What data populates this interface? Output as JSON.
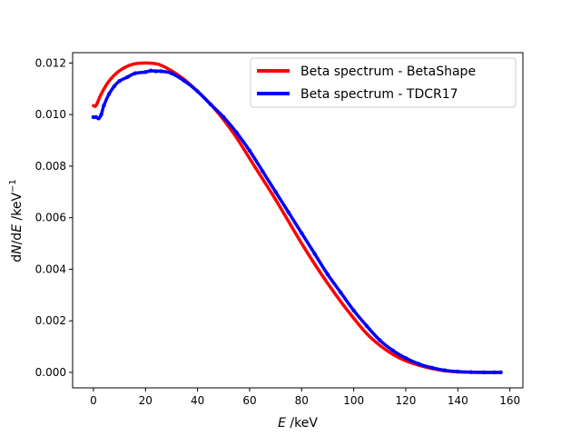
{
  "chart_data": {
    "type": "line",
    "title": "",
    "xlabel": {
      "var": "E",
      "unit": " /keV"
    },
    "ylabel": {
      "pre": "d",
      "var1": "N",
      "mid": "/d",
      "var2": "E",
      "unit": " /keV",
      "sup": "−1"
    },
    "xlim": [
      -8,
      165
    ],
    "ylim": [
      -0.0006,
      0.0124
    ],
    "xticks": [
      0,
      20,
      40,
      60,
      80,
      100,
      120,
      140,
      160
    ],
    "xtick_labels": [
      "0",
      "20",
      "40",
      "60",
      "80",
      "100",
      "120",
      "140",
      "160"
    ],
    "yticks": [
      0.0,
      0.002,
      0.004,
      0.006,
      0.008,
      0.01,
      0.012
    ],
    "ytick_labels": [
      "0.000",
      "0.002",
      "0.004",
      "0.006",
      "0.008",
      "0.010",
      "0.012"
    ],
    "grid": false,
    "legend_position": "top-right",
    "series": [
      {
        "name": "Beta spectrum - BetaShape",
        "color": "#ff0000",
        "marker": "none",
        "x": [
          0,
          1,
          3,
          6,
          10,
          15,
          20,
          25,
          30,
          35,
          40,
          45,
          50,
          55,
          60,
          65,
          70,
          75,
          80,
          85,
          90,
          95,
          100,
          105,
          110,
          115,
          120,
          125,
          130,
          135,
          140,
          145,
          150,
          154,
          156.5
        ],
        "y": [
          0.01035,
          0.01035,
          0.0108,
          0.0113,
          0.0117,
          0.01195,
          0.012,
          0.01195,
          0.0117,
          0.01135,
          0.0109,
          0.0104,
          0.0098,
          0.0091,
          0.0083,
          0.0075,
          0.0067,
          0.00585,
          0.005,
          0.0042,
          0.00345,
          0.00275,
          0.0021,
          0.0015,
          0.00105,
          0.0007,
          0.00045,
          0.00028,
          0.00015,
          6e-05,
          2e-05,
          5e-06,
          0.0,
          0.0,
          0.0
        ]
      },
      {
        "name": "Beta spectrum - TDCR17",
        "color": "#0000ff",
        "marker": "dot",
        "x": [
          0,
          1,
          2,
          3,
          4,
          6,
          8,
          10,
          13,
          16,
          20,
          22,
          24,
          26,
          30,
          35,
          40,
          45,
          50,
          55,
          60,
          65,
          70,
          75,
          80,
          85,
          90,
          95,
          100,
          105,
          110,
          115,
          120,
          125,
          130,
          135,
          140,
          145,
          150,
          154,
          156.5
        ],
        "y": [
          0.0099,
          0.0099,
          0.00985,
          0.01,
          0.01035,
          0.0108,
          0.0111,
          0.0113,
          0.01145,
          0.0116,
          0.01165,
          0.0117,
          0.01168,
          0.01168,
          0.0116,
          0.0113,
          0.0109,
          0.0104,
          0.0099,
          0.0093,
          0.0086,
          0.0078,
          0.007,
          0.0062,
          0.0054,
          0.0046,
          0.0038,
          0.0031,
          0.0024,
          0.0018,
          0.00125,
          0.00085,
          0.00055,
          0.00033,
          0.00018,
          8e-05,
          3e-05,
          1e-05,
          0.0,
          0.0,
          0.0
        ]
      }
    ]
  }
}
